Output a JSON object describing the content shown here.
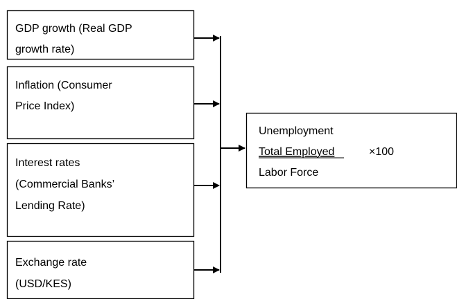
{
  "nodes": [
    {
      "lines": [
        "GDP growth (Real GDP",
        "growth rate)"
      ]
    },
    {
      "lines": [
        "Inflation (Consumer",
        "Price Index)"
      ]
    },
    {
      "lines": [
        "Interest rates",
        "(Commercial Banks’",
        "Lending Rate)"
      ]
    },
    {
      "lines": [
        "Exchange rate",
        "(USD/KES)"
      ]
    }
  ],
  "target": {
    "title": "Unemployment",
    "numerator": "Total Employed",
    "multiplier": "×100",
    "denominator": "Labor Force"
  }
}
